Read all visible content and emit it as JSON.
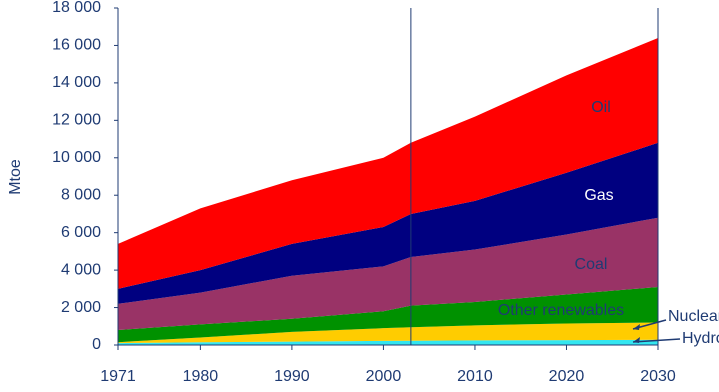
{
  "chart_data": {
    "type": "stacked_area",
    "y_label": "Mtoe",
    "x": [
      1971,
      1980,
      1990,
      2000,
      2003,
      2010,
      2020,
      2030
    ],
    "xlim": [
      1971,
      2030
    ],
    "xticks": [
      1971,
      1980,
      1990,
      2000,
      2010,
      2020,
      2030
    ],
    "ylim": [
      0,
      18000
    ],
    "yticks": [
      {
        "value": 0,
        "label": "0"
      },
      {
        "value": 2000,
        "label": "2 000"
      },
      {
        "value": 4000,
        "label": "4 000"
      },
      {
        "value": 6000,
        "label": "6 000"
      },
      {
        "value": 8000,
        "label": "8 000"
      },
      {
        "value": 10000,
        "label": "10 000"
      },
      {
        "value": 12000,
        "label": "12 000"
      },
      {
        "value": 14000,
        "label": "14 000"
      },
      {
        "value": 16000,
        "label": "16 000"
      },
      {
        "value": 18000,
        "label": "18 000"
      }
    ],
    "vline_x": 2003,
    "series": [
      {
        "name": "Hydro",
        "color": "#33e6f0",
        "values": [
          100,
          150,
          180,
          220,
          230,
          250,
          260,
          280
        ]
      },
      {
        "name": "Nuclear",
        "color": "#ffcc00",
        "values": [
          50,
          250,
          520,
          680,
          720,
          800,
          890,
          920
        ]
      },
      {
        "name": "Other renewables",
        "color": "#009100",
        "values": [
          650,
          700,
          700,
          900,
          1150,
          1250,
          1550,
          1900
        ]
      },
      {
        "name": "Coal",
        "color": "#993366",
        "values": [
          1400,
          1700,
          2300,
          2400,
          2600,
          2800,
          3200,
          3700
        ]
      },
      {
        "name": "Gas",
        "color": "#000080",
        "values": [
          800,
          1200,
          1700,
          2100,
          2300,
          2600,
          3300,
          4000
        ]
      },
      {
        "name": "Oil",
        "color": "#ff0000",
        "values": [
          2400,
          3300,
          3400,
          3700,
          3800,
          4500,
          5200,
          5600
        ]
      }
    ]
  }
}
